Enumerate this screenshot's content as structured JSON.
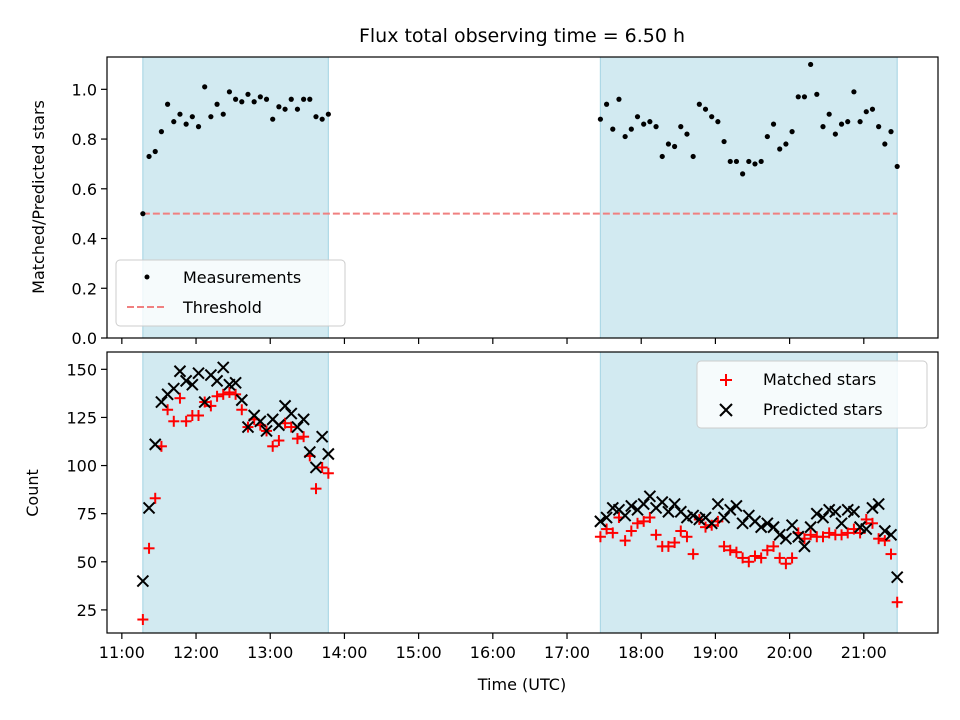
{
  "chart_data": [
    {
      "type": "scatter",
      "title": "Flux total observing time = 6.50 h",
      "xlabel": "",
      "ylabel": "Matched/Predicted stars",
      "xlim": [
        "10:48",
        "22:00"
      ],
      "ylim": [
        0,
        1.13
      ],
      "yticks": [
        "0.0",
        "0.2",
        "0.4",
        "0.6",
        "0.8",
        "1.0"
      ],
      "shaded_spans": [
        [
          "11:17",
          "13:47"
        ],
        [
          "17:27",
          "21:27"
        ]
      ],
      "legend": {
        "placement": "lower-left",
        "entries": [
          "Measurements",
          "Threshold"
        ]
      },
      "threshold": {
        "name": "Threshold",
        "value": 0.5,
        "x_range": [
          "11:17",
          "21:27"
        ],
        "color": "#f08080"
      },
      "series": [
        {
          "name": "Measurements",
          "color": "#000000",
          "points": [
            [
              "11:17",
              0.5
            ],
            [
              "11:22",
              0.73
            ],
            [
              "11:27",
              0.75
            ],
            [
              "11:32",
              0.83
            ],
            [
              "11:37",
              0.94
            ],
            [
              "11:42",
              0.87
            ],
            [
              "11:47",
              0.9
            ],
            [
              "11:52",
              0.86
            ],
            [
              "11:57",
              0.89
            ],
            [
              "12:02",
              0.85
            ],
            [
              "12:07",
              1.01
            ],
            [
              "12:12",
              0.89
            ],
            [
              "12:17",
              0.94
            ],
            [
              "12:22",
              0.9
            ],
            [
              "12:27",
              0.99
            ],
            [
              "12:32",
              0.96
            ],
            [
              "12:37",
              0.95
            ],
            [
              "12:42",
              0.98
            ],
            [
              "12:47",
              0.95
            ],
            [
              "12:52",
              0.97
            ],
            [
              "12:57",
              0.96
            ],
            [
              "13:02",
              0.88
            ],
            [
              "13:07",
              0.93
            ],
            [
              "13:12",
              0.92
            ],
            [
              "13:17",
              0.96
            ],
            [
              "13:22",
              0.92
            ],
            [
              "13:27",
              0.96
            ],
            [
              "13:32",
              0.96
            ],
            [
              "13:37",
              0.89
            ],
            [
              "13:42",
              0.88
            ],
            [
              "13:47",
              0.9
            ],
            [
              "17:27",
              0.88
            ],
            [
              "17:32",
              0.94
            ],
            [
              "17:37",
              0.84
            ],
            [
              "17:42",
              0.96
            ],
            [
              "17:47",
              0.81
            ],
            [
              "17:52",
              0.84
            ],
            [
              "17:57",
              0.89
            ],
            [
              "18:02",
              0.86
            ],
            [
              "18:07",
              0.87
            ],
            [
              "18:12",
              0.85
            ],
            [
              "18:17",
              0.73
            ],
            [
              "18:22",
              0.78
            ],
            [
              "18:27",
              0.77
            ],
            [
              "18:32",
              0.85
            ],
            [
              "18:37",
              0.82
            ],
            [
              "18:42",
              0.73
            ],
            [
              "18:47",
              0.94
            ],
            [
              "18:52",
              0.92
            ],
            [
              "18:57",
              0.89
            ],
            [
              "19:02",
              0.87
            ],
            [
              "19:07",
              0.79
            ],
            [
              "19:12",
              0.71
            ],
            [
              "19:17",
              0.71
            ],
            [
              "19:22",
              0.66
            ],
            [
              "19:27",
              0.71
            ],
            [
              "19:32",
              0.7
            ],
            [
              "19:37",
              0.71
            ],
            [
              "19:42",
              0.81
            ],
            [
              "19:47",
              0.86
            ],
            [
              "19:52",
              0.76
            ],
            [
              "19:57",
              0.78
            ],
            [
              "20:02",
              0.83
            ],
            [
              "20:07",
              0.97
            ],
            [
              "20:12",
              0.97
            ],
            [
              "20:17",
              1.1
            ],
            [
              "20:22",
              0.98
            ],
            [
              "20:27",
              0.85
            ],
            [
              "20:32",
              0.9
            ],
            [
              "20:37",
              0.82
            ],
            [
              "20:42",
              0.86
            ],
            [
              "20:47",
              0.87
            ],
            [
              "20:52",
              0.99
            ],
            [
              "20:57",
              0.87
            ],
            [
              "21:02",
              0.91
            ],
            [
              "21:07",
              0.92
            ],
            [
              "21:12",
              0.85
            ],
            [
              "21:17",
              0.78
            ],
            [
              "21:22",
              0.83
            ],
            [
              "21:27",
              0.69
            ]
          ]
        }
      ]
    },
    {
      "type": "scatter",
      "title": "",
      "xlabel": "Time (UTC)",
      "ylabel": "Count",
      "xlim": [
        "10:48",
        "22:00"
      ],
      "ylim": [
        13,
        159
      ],
      "yticks": [
        "25",
        "50",
        "75",
        "100",
        "125",
        "150"
      ],
      "xticks": [
        "11:00",
        "12:00",
        "13:00",
        "14:00",
        "15:00",
        "16:00",
        "17:00",
        "18:00",
        "19:00",
        "20:00",
        "21:00"
      ],
      "shaded_spans": [
        [
          "11:17",
          "13:47"
        ],
        [
          "17:27",
          "21:27"
        ]
      ],
      "legend": {
        "placement": "top-right",
        "entries": [
          "Matched stars",
          "Predicted stars"
        ]
      },
      "series": [
        {
          "name": "Matched stars",
          "color": "#ff0000",
          "marker": "+",
          "points": [
            [
              "11:17",
              20
            ],
            [
              "11:22",
              57
            ],
            [
              "11:27",
              83
            ],
            [
              "11:32",
              110
            ],
            [
              "11:37",
              129
            ],
            [
              "11:42",
              123
            ],
            [
              "11:47",
              135
            ],
            [
              "11:52",
              123
            ],
            [
              "11:57",
              126
            ],
            [
              "12:02",
              126
            ],
            [
              "12:07",
              133
            ],
            [
              "12:12",
              131
            ],
            [
              "12:17",
              136
            ],
            [
              "12:22",
              137
            ],
            [
              "12:27",
              138
            ],
            [
              "12:32",
              137
            ],
            [
              "12:37",
              129
            ],
            [
              "12:42",
              120
            ],
            [
              "12:47",
              124
            ],
            [
              "12:52",
              121
            ],
            [
              "12:57",
              118
            ],
            [
              "13:02",
              110
            ],
            [
              "13:07",
              113
            ],
            [
              "13:12",
              122
            ],
            [
              "13:17",
              120
            ],
            [
              "13:22",
              114
            ],
            [
              "13:27",
              115
            ],
            [
              "13:32",
              105
            ],
            [
              "13:37",
              88
            ],
            [
              "13:42",
              99
            ],
            [
              "13:47",
              96
            ],
            [
              "17:27",
              63
            ],
            [
              "17:32",
              67
            ],
            [
              "17:37",
              65
            ],
            [
              "17:42",
              73
            ],
            [
              "17:47",
              61
            ],
            [
              "17:52",
              66
            ],
            [
              "17:57",
              70
            ],
            [
              "18:02",
              71
            ],
            [
              "18:07",
              73
            ],
            [
              "18:12",
              64
            ],
            [
              "18:17",
              58
            ],
            [
              "18:22",
              58
            ],
            [
              "18:27",
              60
            ],
            [
              "18:32",
              66
            ],
            [
              "18:37",
              63
            ],
            [
              "18:42",
              54
            ],
            [
              "18:47",
              72
            ],
            [
              "18:52",
              68
            ],
            [
              "18:57",
              69
            ],
            [
              "19:02",
              71
            ],
            [
              "19:07",
              58
            ],
            [
              "19:12",
              56
            ],
            [
              "19:17",
              55
            ],
            [
              "19:22",
              52
            ],
            [
              "19:27",
              50
            ],
            [
              "19:32",
              53
            ],
            [
              "19:37",
              52
            ],
            [
              "19:42",
              56
            ],
            [
              "19:47",
              58
            ],
            [
              "19:52",
              52
            ],
            [
              "19:57",
              49
            ],
            [
              "20:02",
              52
            ],
            [
              "20:07",
              65
            ],
            [
              "20:12",
              62
            ],
            [
              "20:17",
              64
            ],
            [
              "20:22",
              63
            ],
            [
              "20:27",
              63
            ],
            [
              "20:32",
              65
            ],
            [
              "20:37",
              64
            ],
            [
              "20:42",
              64
            ],
            [
              "20:47",
              65
            ],
            [
              "20:52",
              67
            ],
            [
              "20:57",
              65
            ],
            [
              "21:02",
              72
            ],
            [
              "21:07",
              70
            ],
            [
              "21:12",
              62
            ],
            [
              "21:17",
              61
            ],
            [
              "21:22",
              54
            ],
            [
              "21:27",
              29
            ]
          ]
        },
        {
          "name": "Predicted stars",
          "color": "#000000",
          "marker": "x",
          "points": [
            [
              "11:17",
              40
            ],
            [
              "11:22",
              78
            ],
            [
              "11:27",
              111
            ],
            [
              "11:32",
              133
            ],
            [
              "11:37",
              137
            ],
            [
              "11:42",
              140
            ],
            [
              "11:47",
              149
            ],
            [
              "11:52",
              144
            ],
            [
              "11:57",
              142
            ],
            [
              "12:02",
              148
            ],
            [
              "12:07",
              133
            ],
            [
              "12:12",
              147
            ],
            [
              "12:17",
              144
            ],
            [
              "12:22",
              151
            ],
            [
              "12:27",
              142
            ],
            [
              "12:32",
              143
            ],
            [
              "12:37",
              134
            ],
            [
              "12:42",
              120
            ],
            [
              "12:47",
              126
            ],
            [
              "12:52",
              123
            ],
            [
              "12:57",
              118
            ],
            [
              "13:02",
              124
            ],
            [
              "13:07",
              121
            ],
            [
              "13:12",
              131
            ],
            [
              "13:17",
              127
            ],
            [
              "13:22",
              120
            ],
            [
              "13:27",
              124
            ],
            [
              "13:32",
              107
            ],
            [
              "13:37",
              99
            ],
            [
              "13:42",
              115
            ],
            [
              "13:47",
              106
            ],
            [
              "17:27",
              71
            ],
            [
              "17:32",
              73
            ],
            [
              "17:37",
              78
            ],
            [
              "17:42",
              77
            ],
            [
              "17:47",
              74
            ],
            [
              "17:52",
              79
            ],
            [
              "17:57",
              77
            ],
            [
              "18:02",
              80
            ],
            [
              "18:07",
              84
            ],
            [
              "18:12",
              78
            ],
            [
              "18:17",
              81
            ],
            [
              "18:22",
              76
            ],
            [
              "18:27",
              80
            ],
            [
              "18:32",
              76
            ],
            [
              "18:37",
              73
            ],
            [
              "18:42",
              74
            ],
            [
              "18:47",
              72
            ],
            [
              "18:52",
              73
            ],
            [
              "18:57",
              70
            ],
            [
              "19:02",
              80
            ],
            [
              "19:07",
              73
            ],
            [
              "19:12",
              77
            ],
            [
              "19:17",
              79
            ],
            [
              "19:22",
              70
            ],
            [
              "19:27",
              74
            ],
            [
              "19:32",
              71
            ],
            [
              "19:37",
              68
            ],
            [
              "19:42",
              70
            ],
            [
              "19:47",
              68
            ],
            [
              "19:52",
              64
            ],
            [
              "19:57",
              62
            ],
            [
              "20:02",
              69
            ],
            [
              "20:07",
              63
            ],
            [
              "20:12",
              58
            ],
            [
              "20:17",
              68
            ],
            [
              "20:22",
              75
            ],
            [
              "20:27",
              73
            ],
            [
              "20:32",
              77
            ],
            [
              "20:37",
              76
            ],
            [
              "20:42",
              70
            ],
            [
              "20:47",
              77
            ],
            [
              "20:52",
              76
            ],
            [
              "20:57",
              68
            ],
            [
              "21:02",
              67
            ],
            [
              "21:07",
              78
            ],
            [
              "21:12",
              80
            ],
            [
              "21:17",
              66
            ],
            [
              "21:22",
              64
            ],
            [
              "21:27",
              42
            ]
          ]
        }
      ]
    }
  ],
  "colors": {
    "shade": "#add8e6",
    "threshold": "#f08080",
    "matched": "#ff0000",
    "predicted": "#000000"
  }
}
